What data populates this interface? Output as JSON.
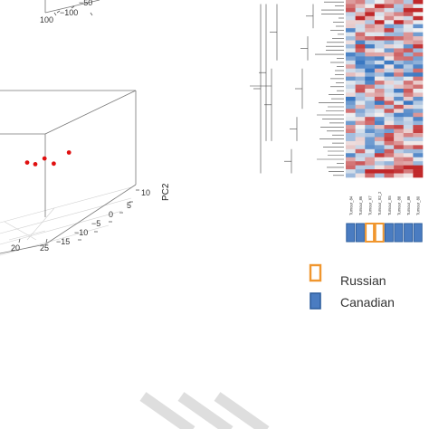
{
  "chart_data": [
    {
      "type": "scatter",
      "title": "",
      "axes": {
        "pc2_label": "PC2",
        "pc2_ticks": [
          "10",
          "5",
          "0",
          "−5",
          "−10",
          "−15"
        ],
        "pc1_ticks": [
          "20",
          "25"
        ],
        "upper_ticks": [
          "100",
          "−100",
          "−50"
        ]
      },
      "points": [
        {
          "pc1": 22,
          "pc2": 4,
          "pc3": 8
        },
        {
          "pc1": 23,
          "pc2": 6,
          "pc3": 6
        },
        {
          "pc1": 24,
          "pc2": 9,
          "pc3": 6
        },
        {
          "pc1": 25,
          "pc2": 12,
          "pc3": 2
        },
        {
          "pc1": 27,
          "pc2": 15,
          "pc3": 4
        }
      ],
      "point_color": "#e01010"
    },
    {
      "type": "heatmap",
      "title": "",
      "columns": [
        "Tumour_84",
        "Tumour_86",
        "Tumour_X7",
        "Tumour_X2_2",
        "Tumour_X5",
        "Tumour_88",
        "Tumour_89",
        "Tumour_80"
      ],
      "groups": [
        "Canadian",
        "Canadian",
        "Russian",
        "Russian",
        "Canadian",
        "Canadian",
        "Canadian",
        "Canadian"
      ],
      "color_low": "#3a78c2",
      "color_mid": "#f2f2f2",
      "color_high": "#c0282a"
    }
  ],
  "legend": {
    "items": [
      {
        "label": "Russian",
        "color": "#f0962e",
        "fill": false
      },
      {
        "label": "Canadian",
        "color": "#3d6fb6",
        "fill": true
      }
    ]
  },
  "colors": {
    "russian": "#f0962e",
    "canadian": "#3d6fb6",
    "canadian_fill": "#4a7cc1"
  }
}
